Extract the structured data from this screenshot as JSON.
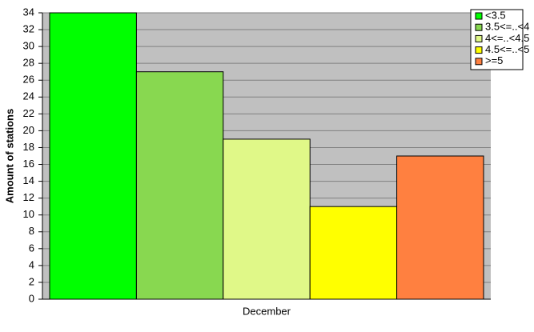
{
  "chart_data": {
    "type": "bar",
    "ylabel": "Amount of stations",
    "categories": [
      "December"
    ],
    "series": [
      {
        "name": "<3.5",
        "color": "#00ff00",
        "values": [
          34
        ]
      },
      {
        "name": "3.5<=..<4",
        "color": "#88d850",
        "values": [
          27
        ]
      },
      {
        "name": "4<=..<4.5",
        "color": "#e0f888",
        "values": [
          19
        ]
      },
      {
        "name": "4.5<=..<5",
        "color": "#ffff00",
        "values": [
          11
        ]
      },
      {
        "name": ">=5",
        "color": "#ff8040",
        "values": [
          17
        ]
      }
    ],
    "ylim": [
      0,
      34
    ],
    "yticks": [
      0,
      2,
      4,
      6,
      8,
      10,
      12,
      14,
      16,
      18,
      20,
      22,
      24,
      26,
      28,
      30,
      32,
      34
    ],
    "grid": true,
    "legend": "top-right"
  }
}
